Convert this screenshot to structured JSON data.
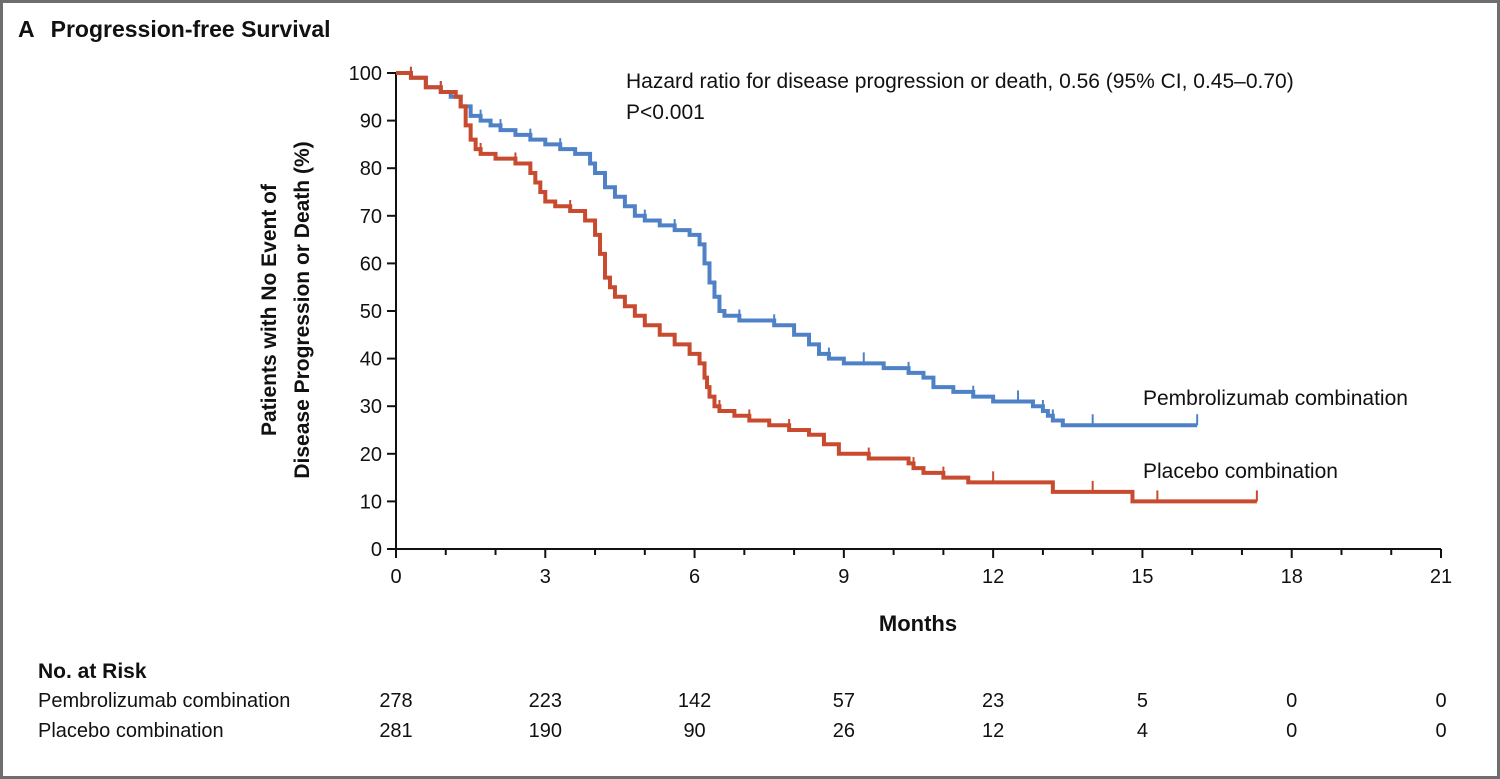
{
  "panel": {
    "letter": "A",
    "title": "Progression-free Survival"
  },
  "annotation": {
    "line1": "Hazard ratio for disease progression or death, 0.56 (95% CI, 0.45–0.70)",
    "line2": "P<0.001"
  },
  "colors": {
    "pembrolizumab": "#4f81c7",
    "placebo": "#c84b2f",
    "axis": "#111111",
    "frame": "#6e6e6e"
  },
  "chart_data": {
    "type": "line",
    "subtype": "kaplan-meier-step",
    "title": "Progression-free Survival",
    "xlabel": "Months",
    "ylabel_line1": "Patients with No Event of",
    "ylabel_line2": "Disease Progression or Death (%)",
    "xlim": [
      0,
      21
    ],
    "ylim": [
      0,
      100
    ],
    "xticks": [
      0,
      3,
      6,
      9,
      12,
      15,
      18,
      21
    ],
    "yticks": [
      0,
      10,
      20,
      30,
      40,
      50,
      60,
      70,
      80,
      90,
      100
    ],
    "grid": false,
    "series": [
      {
        "name": "Pembrolizumab combination",
        "color": "#4f81c7",
        "x": [
          0,
          0.3,
          0.6,
          0.9,
          1.1,
          1.3,
          1.5,
          1.7,
          1.9,
          2.1,
          2.4,
          2.7,
          3.0,
          3.3,
          3.6,
          3.9,
          4.0,
          4.2,
          4.4,
          4.6,
          4.8,
          5.0,
          5.3,
          5.6,
          5.9,
          6.1,
          6.2,
          6.3,
          6.4,
          6.5,
          6.6,
          6.9,
          7.2,
          7.6,
          8.0,
          8.3,
          8.5,
          8.7,
          9.0,
          9.4,
          9.8,
          10.3,
          10.6,
          10.8,
          11.2,
          11.6,
          12.0,
          12.5,
          12.8,
          13.0,
          13.1,
          13.2,
          13.4,
          14.0,
          15.0,
          16.1
        ],
        "y": [
          100,
          99,
          97,
          96,
          95,
          93,
          91,
          90,
          89,
          88,
          87,
          86,
          85,
          84,
          83,
          81,
          79,
          76,
          74,
          72,
          70,
          69,
          68,
          67,
          66,
          64,
          60,
          56,
          53,
          50,
          49,
          48,
          48,
          47,
          45,
          43,
          41,
          40,
          39,
          39,
          38,
          37,
          36,
          34,
          33,
          32,
          31,
          31,
          30,
          29,
          28,
          27,
          26,
          26,
          26,
          26
        ]
      },
      {
        "name": "Placebo combination",
        "color": "#c84b2f",
        "x": [
          0,
          0.3,
          0.6,
          0.9,
          1.2,
          1.3,
          1.4,
          1.5,
          1.6,
          1.7,
          2.0,
          2.4,
          2.7,
          2.8,
          2.9,
          3.0,
          3.2,
          3.5,
          3.8,
          4.0,
          4.1,
          4.2,
          4.3,
          4.4,
          4.6,
          4.8,
          5.0,
          5.3,
          5.6,
          5.9,
          6.1,
          6.2,
          6.25,
          6.3,
          6.4,
          6.5,
          6.8,
          7.1,
          7.5,
          7.9,
          8.3,
          8.6,
          8.9,
          9.5,
          10.3,
          10.4,
          10.6,
          11.0,
          11.5,
          12.0,
          13.0,
          13.2,
          13.5,
          14.0,
          14.8,
          15.3,
          16.0,
          17.3
        ],
        "y": [
          100,
          99,
          97,
          96,
          95,
          93,
          89,
          86,
          84,
          83,
          82,
          81,
          79,
          77,
          75,
          73,
          72,
          71,
          69,
          66,
          62,
          57,
          55,
          53,
          51,
          49,
          47,
          45,
          43,
          41,
          39,
          36,
          34,
          32,
          30,
          29,
          28,
          27,
          26,
          25,
          24,
          22,
          20,
          19,
          18,
          17,
          16,
          15,
          14,
          14,
          14,
          12,
          12,
          12,
          10,
          10,
          10,
          10
        ]
      }
    ]
  },
  "risk_table": {
    "heading": "No. at Risk",
    "rows": [
      {
        "name": "Pembrolizumab combination",
        "values": [
          "278",
          "223",
          "142",
          "57",
          "23",
          "5",
          "0",
          "0"
        ]
      },
      {
        "name": "Placebo combination",
        "values": [
          "281",
          "190",
          "90",
          "26",
          "12",
          "4",
          "0",
          "0"
        ]
      }
    ]
  }
}
